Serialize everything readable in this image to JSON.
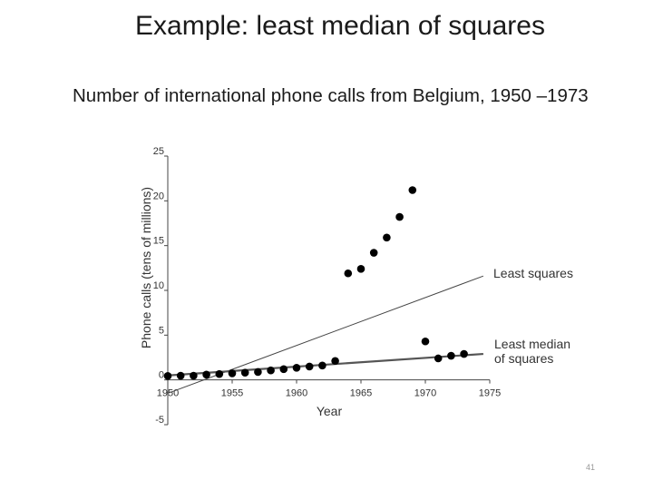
{
  "slide": {
    "title": "Example: least median of squares",
    "subtitle": "Number of international phone calls from Belgium, 1950 –1973",
    "page_number": "41"
  },
  "chart_data": {
    "type": "scatter",
    "xlabel": "Year",
    "ylabel": "Phone calls (tens of millions)",
    "xlim": [
      1950,
      1975
    ],
    "ylim": [
      -5,
      25
    ],
    "xticks": [
      1950,
      1955,
      1960,
      1965,
      1970,
      1975
    ],
    "yticks": [
      -5,
      0,
      5,
      10,
      15,
      20,
      25
    ],
    "grid": false,
    "point_color": "#000000",
    "series": [
      {
        "x": [
          1950,
          1951,
          1952,
          1953,
          1954,
          1955,
          1956,
          1957,
          1958,
          1959,
          1960,
          1961,
          1962,
          1963,
          1964,
          1965,
          1966,
          1967,
          1968,
          1969,
          1970,
          1971,
          1972,
          1973
        ],
        "y": [
          0.44,
          0.47,
          0.47,
          0.59,
          0.66,
          0.73,
          0.81,
          0.88,
          1.06,
          1.2,
          1.35,
          1.49,
          1.61,
          2.12,
          11.9,
          12.4,
          14.2,
          15.9,
          18.2,
          21.2,
          4.3,
          2.4,
          2.7,
          2.9
        ]
      }
    ],
    "lines": [
      {
        "label": "Least squares",
        "x": [
          1950,
          1974.5
        ],
        "y": [
          -1.5,
          11.6
        ]
      },
      {
        "label": "Least median of squares",
        "x": [
          1950,
          1974.5
        ],
        "y": [
          0.5,
          2.9
        ]
      }
    ]
  }
}
